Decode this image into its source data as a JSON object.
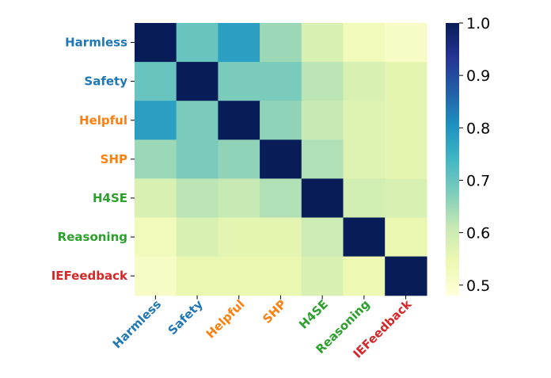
{
  "chart_data": {
    "type": "heatmap",
    "rows": [
      "Harmless",
      "Safety",
      "Helpful",
      "SHP",
      "H4SE",
      "Reasoning",
      "IEFeedback"
    ],
    "columns": [
      "Harmless",
      "Safety",
      "Helpful",
      "SHP",
      "H4SE",
      "Reasoning",
      "IEFeedback"
    ],
    "label_colors": [
      "#1f77b4",
      "#1f77b4",
      "#ff7f0e",
      "#ff7f0e",
      "#2ca02c",
      "#2ca02c",
      "#d62728"
    ],
    "values": [
      [
        1.0,
        0.7,
        0.78,
        0.65,
        0.58,
        0.53,
        0.51
      ],
      [
        0.7,
        1.0,
        0.68,
        0.68,
        0.62,
        0.58,
        0.56
      ],
      [
        0.78,
        0.68,
        1.0,
        0.66,
        0.61,
        0.57,
        0.56
      ],
      [
        0.65,
        0.68,
        0.66,
        1.0,
        0.63,
        0.57,
        0.56
      ],
      [
        0.58,
        0.62,
        0.61,
        0.63,
        1.0,
        0.59,
        0.58
      ],
      [
        0.53,
        0.58,
        0.56,
        0.56,
        0.6,
        1.0,
        0.55
      ],
      [
        0.51,
        0.55,
        0.55,
        0.55,
        0.58,
        0.54,
        1.0
      ]
    ],
    "colorbar": {
      "min": 0.48,
      "max": 1.0,
      "ticks": [
        "1.0",
        "0.9",
        "0.8",
        "0.7",
        "0.6",
        "0.5"
      ],
      "tick_values": [
        1.0,
        0.9,
        0.8,
        0.7,
        0.6,
        0.5
      ],
      "colormap": "YlGnBu"
    }
  }
}
